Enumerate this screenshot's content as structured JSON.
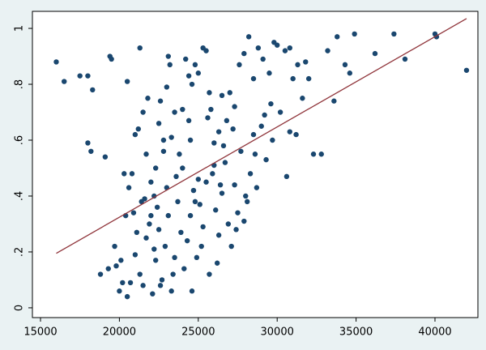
{
  "chart_data": {
    "type": "scatter",
    "xlim": [
      14487,
      42720
    ],
    "ylim": [
      -0.035,
      1.061
    ],
    "xticks": [
      15000,
      20000,
      25000,
      30000,
      35000,
      40000
    ],
    "yticks": [
      0,
      {
        "value": 0.2,
        "label": ".2"
      },
      {
        "value": 0.4,
        "label": ".4"
      },
      {
        "value": 0.6,
        "label": ".6"
      },
      {
        "value": 0.8,
        "label": ".8"
      },
      1
    ],
    "grid": false,
    "series": [
      {
        "type": "scatter",
        "color": "#1a476f",
        "x": [
          16000,
          16500,
          17500,
          18000,
          18300,
          19400,
          19500,
          20500,
          21300,
          18000,
          18200,
          19100,
          18800,
          19300,
          19700,
          19800,
          20000,
          20100,
          20300,
          20600,
          20800,
          20900,
          20500,
          20700,
          21000,
          21200,
          21400,
          21500,
          21700,
          21800,
          22000,
          22200,
          22500,
          22300,
          22600,
          22800,
          23000,
          23100,
          23200,
          23500,
          23800,
          24000,
          24200,
          24400,
          24600,
          24800,
          25000,
          25300,
          25500,
          25700,
          26000,
          26300,
          26500,
          26800,
          27000,
          27300,
          27600,
          27900,
          28200,
          28500,
          28800,
          29100,
          29500,
          29800,
          30000,
          30200,
          30500,
          30800,
          31000,
          31300,
          31600,
          31800,
          32000,
          32300,
          32800,
          33200,
          33600,
          33800,
          34300,
          34600,
          34900,
          36200,
          37400,
          38100,
          40000,
          40100,
          42000,
          30600,
          31200,
          30800,
          29700,
          29300,
          28600,
          21000,
          21300,
          21500,
          21700,
          21900,
          22100,
          22300,
          22500,
          22700,
          22900,
          23100,
          23300,
          23500,
          23700,
          23900,
          24100,
          24300,
          24500,
          24700,
          24900,
          25100,
          25300,
          25500,
          25700,
          25900,
          26100,
          26300,
          26500,
          26700,
          26900,
          27100,
          27300,
          27500,
          27700,
          27900,
          28100,
          28300,
          28500,
          28700,
          29000,
          24000,
          24500,
          25000,
          25600,
          26000,
          26600,
          27200,
          22000,
          22400,
          23000,
          23600,
          20200,
          21100,
          22600,
          23400,
          24600,
          25200,
          26200,
          27400,
          20400,
          21600,
          22200,
          24800,
          26400,
          28000,
          29200,
          29600,
          24400,
          25800,
          23300,
          22800
        ],
        "values": [
          0.88,
          0.81,
          0.83,
          0.83,
          0.78,
          0.9,
          0.89,
          0.81,
          0.93,
          0.59,
          0.56,
          0.54,
          0.12,
          0.14,
          0.22,
          0.15,
          0.06,
          0.17,
          0.48,
          0.43,
          0.48,
          0.34,
          0.04,
          0.09,
          0.62,
          0.64,
          0.38,
          0.7,
          0.55,
          0.75,
          0.45,
          0.4,
          0.66,
          0.5,
          0.74,
          0.6,
          0.79,
          0.9,
          0.87,
          0.7,
          0.55,
          0.71,
          0.89,
          0.83,
          0.8,
          0.87,
          0.84,
          0.93,
          0.92,
          0.77,
          0.59,
          0.63,
          0.76,
          0.67,
          0.77,
          0.72,
          0.87,
          0.91,
          0.97,
          0.82,
          0.93,
          0.89,
          0.84,
          0.95,
          0.94,
          0.7,
          0.92,
          0.93,
          0.82,
          0.87,
          0.75,
          0.88,
          0.82,
          0.55,
          0.55,
          0.92,
          0.74,
          0.97,
          0.87,
          0.84,
          0.98,
          0.91,
          0.98,
          0.89,
          0.98,
          0.97,
          0.85,
          0.47,
          0.62,
          0.63,
          0.6,
          0.53,
          0.55,
          0.19,
          0.12,
          0.08,
          0.25,
          0.3,
          0.05,
          0.17,
          0.28,
          0.1,
          0.22,
          0.33,
          0.06,
          0.18,
          0.38,
          0.27,
          0.14,
          0.24,
          0.33,
          0.42,
          0.18,
          0.37,
          0.29,
          0.45,
          0.12,
          0.48,
          0.35,
          0.26,
          0.41,
          0.52,
          0.3,
          0.22,
          0.44,
          0.34,
          0.56,
          0.31,
          0.38,
          0.48,
          0.62,
          0.43,
          0.65,
          0.5,
          0.6,
          0.46,
          0.68,
          0.51,
          0.58,
          0.64,
          0.33,
          0.36,
          0.43,
          0.47,
          0.09,
          0.27,
          0.08,
          0.12,
          0.06,
          0.22,
          0.16,
          0.28,
          0.33,
          0.39,
          0.21,
          0.38,
          0.44,
          0.4,
          0.69,
          0.73,
          0.67,
          0.71,
          0.61,
          0.56
        ]
      },
      {
        "type": "line",
        "color": "#90353b",
        "x": [
          16000,
          42000
        ],
        "values": [
          0.195,
          1.035
        ]
      }
    ]
  }
}
